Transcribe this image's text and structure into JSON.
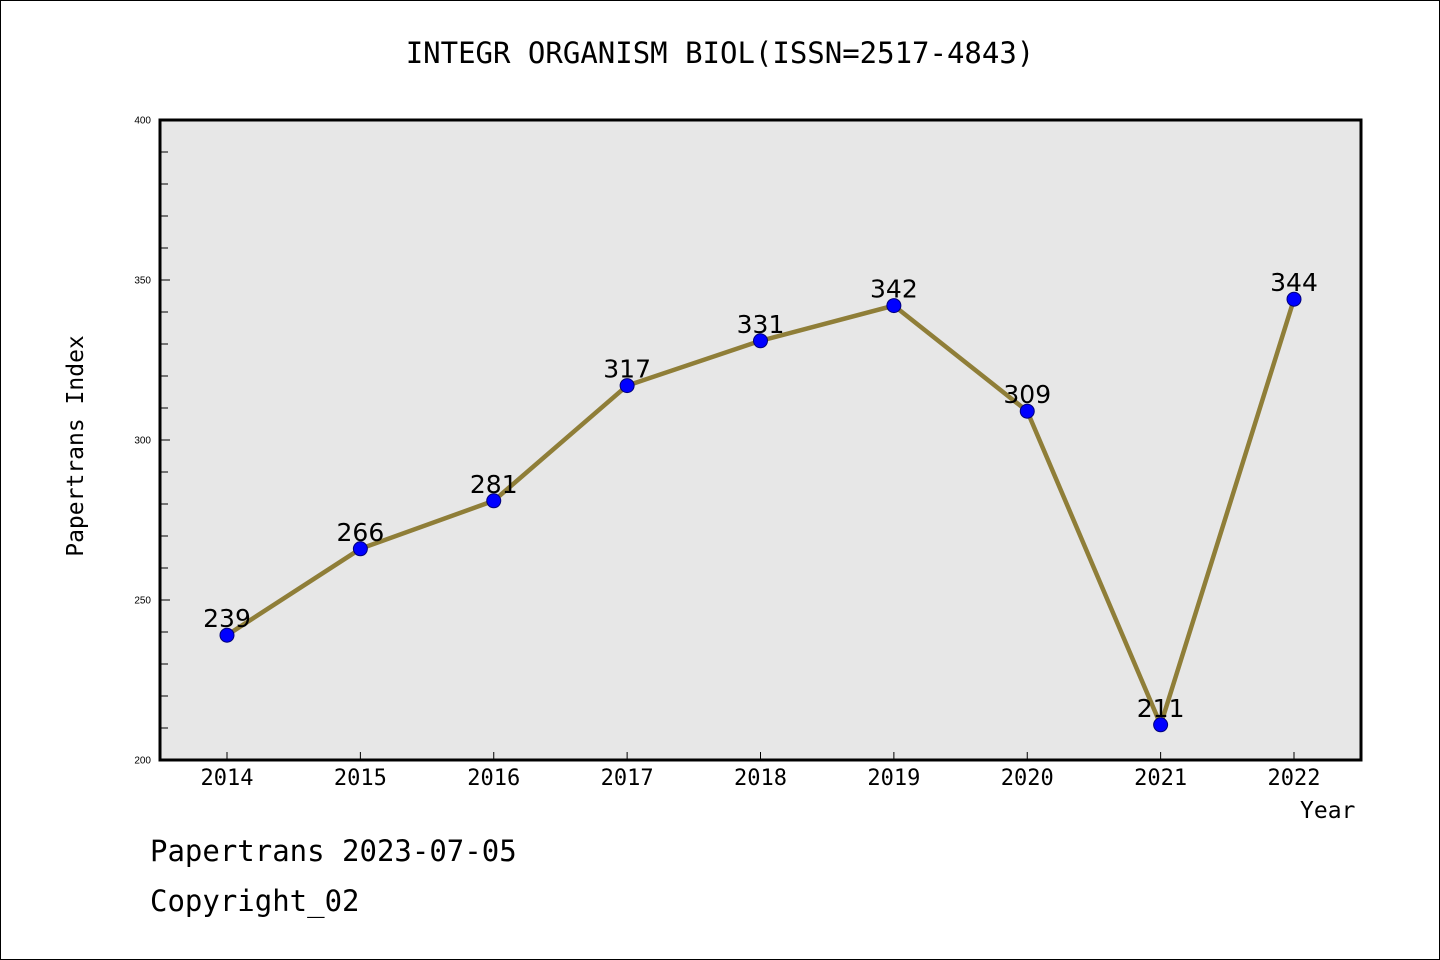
{
  "chart_data": {
    "type": "line",
    "title": "INTEGR ORGANISM BIOL(ISSN=2517-4843)",
    "xlabel": "Year",
    "ylabel": "Papertrans Index",
    "categories": [
      "2014",
      "2015",
      "2016",
      "2017",
      "2018",
      "2019",
      "2020",
      "2021",
      "2022"
    ],
    "series": [
      {
        "values": [
          239,
          266,
          281,
          317,
          331,
          342,
          309,
          211,
          344
        ]
      }
    ],
    "data_labels": [
      "239",
      "266",
      "281",
      "317",
      "331",
      "342",
      "309",
      "211",
      "344"
    ],
    "ylim": [
      200,
      400
    ],
    "yticks": [
      "200",
      "250",
      "300",
      "350",
      "400"
    ],
    "grid": false,
    "colors": {
      "line": "#8f7e38",
      "marker": "#0000ff",
      "plot_background": "#e7e7e7"
    }
  },
  "footer": {
    "date_line": "Papertrans 2023-07-05",
    "copyright": "Copyright_02"
  }
}
